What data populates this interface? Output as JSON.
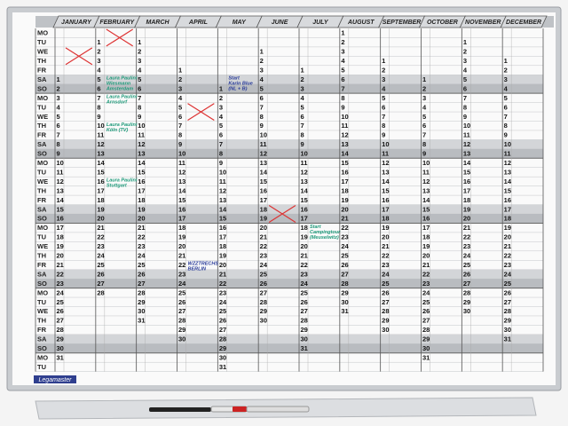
{
  "brand": "Legamaster",
  "weekdays": [
    "MO",
    "TU",
    "WE",
    "TH",
    "FR",
    "SA",
    "SO",
    "MO",
    "TU",
    "WE",
    "TH",
    "FR",
    "SA",
    "SO",
    "MO",
    "TU",
    "WE",
    "TH",
    "FR",
    "SA",
    "SO",
    "MO",
    "TU",
    "WE",
    "TH",
    "FR",
    "SA",
    "SO",
    "MO",
    "TU",
    "WE",
    "TH",
    "FR",
    "SA",
    "SO",
    "MO",
    "TU"
  ],
  "months": [
    {
      "name": "JANUARY",
      "days": [
        null,
        null,
        null,
        null,
        null,
        1,
        2,
        3,
        4,
        5,
        6,
        7,
        8,
        9,
        10,
        11,
        12,
        13,
        14,
        15,
        16,
        17,
        18,
        19,
        20,
        21,
        22,
        23,
        24,
        25,
        26,
        27,
        28,
        29,
        30,
        31
      ]
    },
    {
      "name": "FEBRUARY",
      "days": [
        null,
        1,
        2,
        3,
        4,
        5,
        6,
        7,
        8,
        9,
        10,
        11,
        12,
        13,
        14,
        15,
        16,
        17,
        18,
        19,
        20,
        21,
        22,
        23,
        24,
        25,
        26,
        27,
        28
      ]
    },
    {
      "name": "MARCH",
      "days": [
        null,
        1,
        2,
        3,
        4,
        5,
        6,
        7,
        8,
        9,
        10,
        11,
        12,
        13,
        14,
        15,
        16,
        17,
        18,
        19,
        20,
        21,
        22,
        23,
        24,
        25,
        26,
        27,
        28,
        29,
        30,
        31
      ]
    },
    {
      "name": "APRIL",
      "days": [
        null,
        null,
        null,
        null,
        1,
        2,
        3,
        4,
        5,
        6,
        7,
        8,
        9,
        10,
        11,
        12,
        13,
        14,
        15,
        16,
        17,
        18,
        19,
        20,
        21,
        22,
        23,
        24,
        25,
        26,
        27,
        28,
        29,
        30
      ]
    },
    {
      "name": "MAY",
      "days": [
        null,
        null,
        null,
        null,
        null,
        null,
        1,
        2,
        3,
        4,
        5,
        6,
        7,
        8,
        9,
        10,
        11,
        12,
        13,
        14,
        15,
        16,
        17,
        18,
        19,
        20,
        21,
        22,
        23,
        24,
        25,
        26,
        27,
        28,
        29,
        30,
        31
      ]
    },
    {
      "name": "JUNE",
      "days": [
        null,
        null,
        1,
        2,
        3,
        4,
        5,
        6,
        7,
        8,
        9,
        10,
        11,
        12,
        13,
        14,
        15,
        16,
        17,
        18,
        19,
        20,
        21,
        22,
        23,
        24,
        25,
        26,
        27,
        28,
        29,
        30
      ]
    },
    {
      "name": "JULY",
      "days": [
        null,
        null,
        null,
        null,
        1,
        2,
        3,
        4,
        5,
        6,
        7,
        8,
        9,
        10,
        11,
        12,
        13,
        14,
        15,
        16,
        17,
        18,
        19,
        20,
        21,
        22,
        23,
        24,
        25,
        26,
        27,
        28,
        29,
        30,
        31
      ]
    },
    {
      "name": "AUGUST",
      "days": [
        1,
        2,
        3,
        4,
        5,
        6,
        7,
        8,
        9,
        10,
        11,
        12,
        13,
        14,
        15,
        16,
        17,
        18,
        19,
        20,
        21,
        22,
        23,
        24,
        25,
        26,
        27,
        28,
        29,
        30,
        31
      ]
    },
    {
      "name": "SEPTEMBER",
      "days": [
        null,
        null,
        null,
        1,
        2,
        3,
        4,
        5,
        6,
        7,
        8,
        9,
        10,
        11,
        12,
        13,
        14,
        15,
        16,
        17,
        18,
        19,
        20,
        21,
        22,
        23,
        24,
        25,
        26,
        27,
        28,
        29,
        30
      ]
    },
    {
      "name": "OCTOBER",
      "days": [
        null,
        null,
        null,
        null,
        null,
        1,
        2,
        3,
        4,
        5,
        6,
        7,
        8,
        9,
        10,
        11,
        12,
        13,
        14,
        15,
        16,
        17,
        18,
        19,
        20,
        21,
        22,
        23,
        24,
        25,
        26,
        27,
        28,
        29,
        30,
        31
      ]
    },
    {
      "name": "NOVEMBER",
      "days": [
        null,
        1,
        2,
        3,
        4,
        5,
        6,
        7,
        8,
        9,
        10,
        11,
        12,
        13,
        14,
        15,
        16,
        17,
        18,
        19,
        20,
        21,
        22,
        23,
        24,
        25,
        26,
        27,
        28,
        29,
        30
      ]
    },
    {
      "name": "DECEMBER",
      "days": [
        null,
        null,
        null,
        1,
        2,
        3,
        4,
        5,
        6,
        7,
        8,
        9,
        10,
        11,
        12,
        13,
        14,
        15,
        16,
        17,
        18,
        19,
        20,
        21,
        22,
        23,
        24,
        25,
        26,
        27,
        28,
        29,
        30,
        31
      ]
    }
  ],
  "notes": [
    [
      "Laura Paulini",
      "Wiesmann",
      "Amsterdam"
    ],
    [
      "Laura Paulini",
      "Arnsdorf"
    ],
    [
      "Laura Paulini",
      "Köln (TV)"
    ],
    [
      "Laura Paulini",
      "Stuttgart"
    ],
    [
      "Start",
      "Karin Blue",
      "(NL + B)"
    ],
    [
      "WZZTRECHS",
      "BERLIN"
    ],
    [
      "Start",
      "Campingtour",
      "(Meuselwitz)"
    ]
  ]
}
